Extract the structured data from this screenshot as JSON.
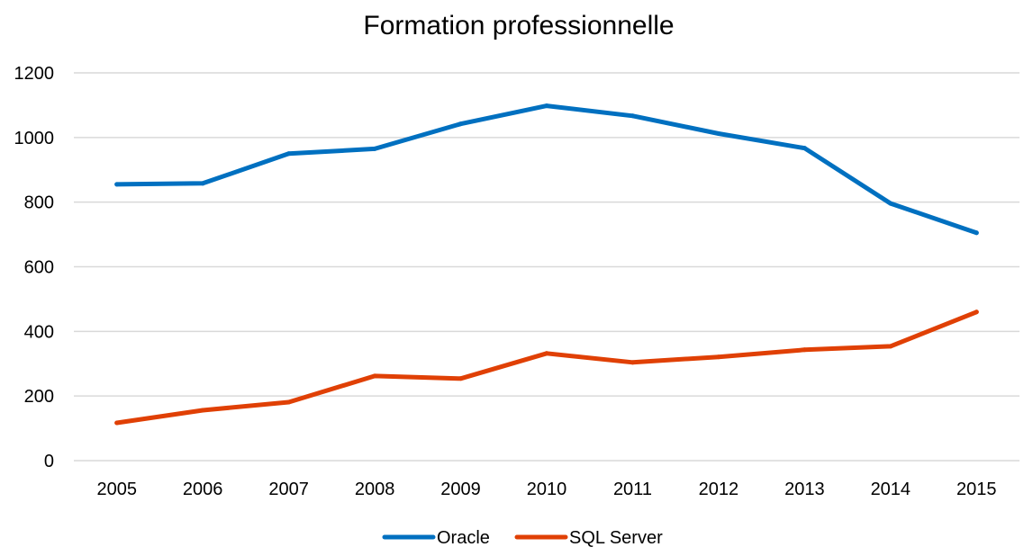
{
  "chart_data": {
    "type": "line",
    "title": "Formation professionnelle",
    "xlabel": "",
    "ylabel": "",
    "categories": [
      "2005",
      "2006",
      "2007",
      "2008",
      "2009",
      "2010",
      "2011",
      "2012",
      "2013",
      "2014",
      "2015"
    ],
    "yticks": [
      "0",
      "200",
      "400",
      "600",
      "800",
      "1000",
      "1200"
    ],
    "ylim": [
      0,
      1200
    ],
    "grid": "horizontal",
    "legend_position": "bottom",
    "series": [
      {
        "name": "Oracle",
        "color": "#0070c0",
        "values": [
          855,
          858,
          950,
          965,
          1042,
          1098,
          1067,
          1012,
          967,
          796,
          705
        ]
      },
      {
        "name": "SQL Server",
        "color": "#e04005",
        "values": [
          117,
          156,
          181,
          262,
          254,
          332,
          304,
          321,
          343,
          354,
          460
        ]
      }
    ]
  }
}
